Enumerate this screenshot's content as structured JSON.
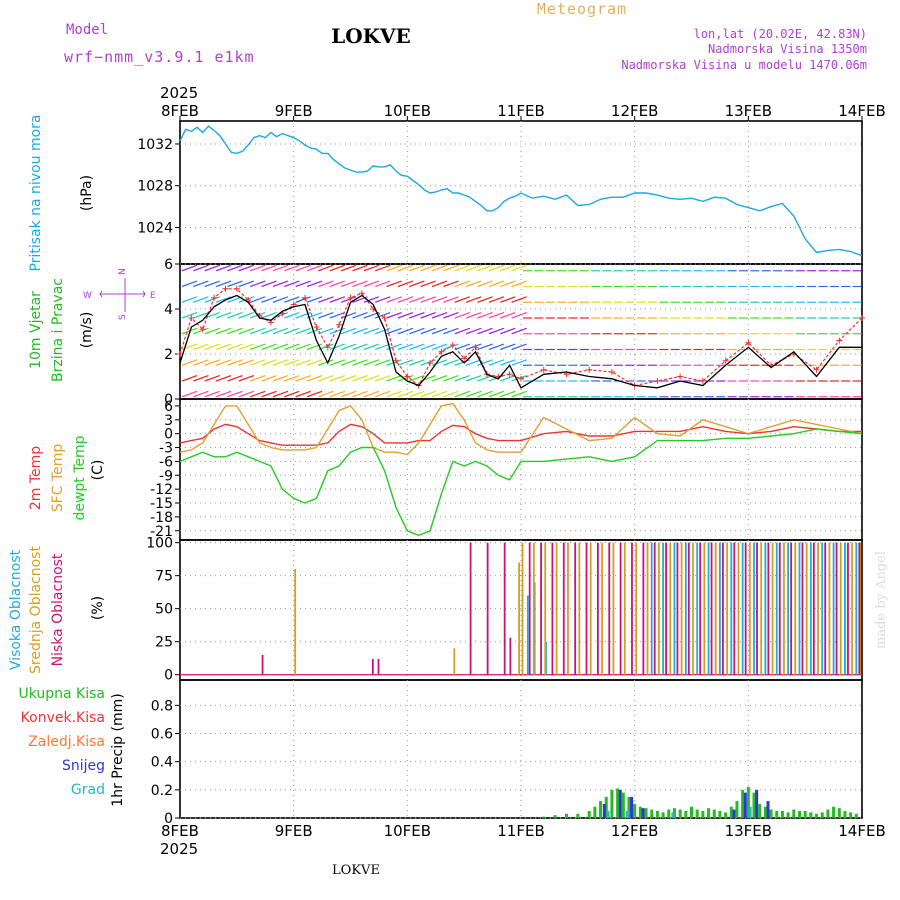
{
  "header": {
    "model_label": "Model",
    "model_name": "wrf−nmm_v3.9.1 e1km",
    "location": "LOKVE",
    "meteogram": "Meteogram",
    "lonlat": "lon,lat (20.02E, 42.83N)",
    "altitude": "Nadmorska Visina 1350m",
    "model_altitude": "Nadmorska Visina u modelu 1470.06m",
    "year_top": "2025",
    "year_bottom": "2025",
    "footer_location": "LOKVE",
    "credit": "made by Angel"
  },
  "colors": {
    "pressure": "#1ba8e0",
    "wind_label": "#22bb22",
    "temp2m": "#ee3333",
    "sfc": "#e0a030",
    "dewpt": "#22cc22",
    "high_cloud": "#22aadd",
    "mid_cloud": "#d4a020",
    "low_cloud": "#cc1177",
    "total_precip": "#22bb22",
    "conv_precip": "#ee3333",
    "freezing": "#ff7733",
    "snow": "#3333dd",
    "hail": "#22bbbb",
    "meteogram_title": "#e0b060",
    "header_purple": "#b040d0"
  },
  "chart_data": [
    {
      "type": "line",
      "panel": "pressure",
      "ylabel": [
        "Pritisak na nivou mora",
        "(hPa)"
      ],
      "xticks": [
        "8FEB",
        "9FEB",
        "10FEB",
        "11FEB",
        "12FEB",
        "13FEB",
        "14FEB"
      ],
      "yticks": [
        1024,
        1028,
        1032
      ],
      "ylim": [
        1020.5,
        1034.2
      ],
      "grid": true,
      "series": [
        {
          "name": "Pritisak na nivou mora",
          "x": [
            0,
            0.05,
            0.1,
            0.15,
            0.2,
            0.25,
            0.3,
            0.35,
            0.4,
            0.45,
            0.5,
            0.55,
            0.6,
            0.65,
            0.7,
            0.75,
            0.8,
            0.85,
            0.9,
            0.95,
            1.0,
            1.05,
            1.1,
            1.15,
            1.2,
            1.25,
            1.3,
            1.35,
            1.4,
            1.45,
            1.5,
            1.55,
            1.6,
            1.65,
            1.7,
            1.75,
            1.8,
            1.85,
            1.9,
            1.95,
            2.0,
            2.05,
            2.1,
            2.15,
            2.2,
            2.25,
            2.3,
            2.35,
            2.4,
            2.45,
            2.5,
            2.55,
            2.6,
            2.65,
            2.7,
            2.75,
            2.8,
            2.85,
            2.9,
            2.95,
            3.0,
            3.1,
            3.2,
            3.3,
            3.4,
            3.5,
            3.6,
            3.7,
            3.8,
            3.9,
            4.0,
            4.1,
            4.2,
            4.3,
            4.4,
            4.5,
            4.6,
            4.7,
            4.8,
            4.9,
            5.0,
            5.1,
            5.2,
            5.3,
            5.4,
            5.5,
            5.6,
            5.7,
            5.8,
            5.9,
            6.0
          ],
          "values": [
            1032.3,
            1033.4,
            1033.2,
            1033.6,
            1033.1,
            1033.7,
            1033.3,
            1032.8,
            1032.0,
            1031.2,
            1031.1,
            1031.3,
            1031.9,
            1032.6,
            1032.8,
            1032.6,
            1033.1,
            1032.7,
            1033.0,
            1032.8,
            1032.6,
            1032.3,
            1031.9,
            1031.6,
            1031.5,
            1031.1,
            1031.1,
            1030.5,
            1030.1,
            1029.7,
            1029.5,
            1029.3,
            1029.3,
            1029.4,
            1029.9,
            1029.8,
            1029.8,
            1030.0,
            1029.4,
            1029.0,
            1028.9,
            1028.5,
            1028.1,
            1027.6,
            1027.3,
            1027.4,
            1027.6,
            1027.7,
            1027.3,
            1027.3,
            1027.1,
            1026.9,
            1026.5,
            1026.1,
            1025.6,
            1025.6,
            1025.9,
            1026.5,
            1026.8,
            1027.0,
            1027.3,
            1026.8,
            1027.0,
            1026.7,
            1027.1,
            1026.1,
            1026.2,
            1026.7,
            1026.9,
            1026.9,
            1027.3,
            1027.3,
            1027.1,
            1026.8,
            1026.7,
            1026.8,
            1026.5,
            1026.9,
            1026.8,
            1026.2,
            1025.9,
            1025.6,
            1026.0,
            1026.3,
            1025.1,
            1022.9,
            1021.6,
            1021.8,
            1021.9,
            1021.7,
            1021.3
          ]
        }
      ]
    },
    {
      "type": "line",
      "panel": "wind",
      "ylabel": [
        "10m Vjetar",
        "Brzina i Pravac",
        "(m/s)"
      ],
      "compass": {
        "n": "N",
        "s": "S",
        "w": "W",
        "e": "E"
      },
      "yticks": [
        0,
        2,
        4,
        6
      ],
      "ylim": [
        0,
        6
      ],
      "grid": true,
      "series": [
        {
          "name": "speed",
          "x": [
            0,
            0.1,
            0.2,
            0.3,
            0.4,
            0.5,
            0.6,
            0.7,
            0.8,
            0.9,
            1.0,
            1.1,
            1.2,
            1.3,
            1.4,
            1.5,
            1.6,
            1.7,
            1.8,
            1.9,
            2.0,
            2.1,
            2.2,
            2.3,
            2.4,
            2.5,
            2.6,
            2.7,
            2.8,
            2.9,
            3.0,
            3.2,
            3.4,
            3.6,
            3.8,
            4.0,
            4.2,
            4.4,
            4.6,
            4.8,
            5.0,
            5.2,
            5.4,
            5.6,
            5.8,
            6.0
          ],
          "values": [
            1.6,
            3.2,
            3.5,
            4.1,
            4.4,
            4.6,
            4.3,
            3.6,
            3.5,
            3.9,
            4.1,
            4.2,
            2.6,
            1.6,
            2.8,
            4.3,
            4.6,
            4.2,
            3.1,
            1.2,
            0.8,
            0.6,
            1.2,
            1.9,
            2.1,
            1.6,
            2.1,
            1.1,
            0.9,
            1.5,
            0.5,
            1.1,
            1.2,
            1.0,
            0.9,
            0.6,
            0.5,
            0.8,
            0.6,
            1.5,
            2.3,
            1.4,
            2.1,
            1.0,
            2.3,
            2.3
          ]
        },
        {
          "name": "gust",
          "x": [
            0,
            0.1,
            0.2,
            0.3,
            0.4,
            0.5,
            0.6,
            0.7,
            0.8,
            0.9,
            1.0,
            1.1,
            1.2,
            1.3,
            1.4,
            1.5,
            1.6,
            1.7,
            1.8,
            1.9,
            2.0,
            2.1,
            2.2,
            2.3,
            2.4,
            2.5,
            2.6,
            2.7,
            2.8,
            2.9,
            3.0,
            3.2,
            3.4,
            3.6,
            3.8,
            4.0,
            4.2,
            4.4,
            4.6,
            4.8,
            5.0,
            5.2,
            5.4,
            5.6,
            5.8,
            6.0
          ],
          "values": [
            2.0,
            3.6,
            3.1,
            4.5,
            4.9,
            4.9,
            4.4,
            3.7,
            3.4,
            3.8,
            4.2,
            4.5,
            3.2,
            2.3,
            3.3,
            4.5,
            4.7,
            4.0,
            3.6,
            1.7,
            1.0,
            0.6,
            1.6,
            2.1,
            2.4,
            1.8,
            2.3,
            1.1,
            1.0,
            1.1,
            0.9,
            1.3,
            1.1,
            1.3,
            1.2,
            0.6,
            0.8,
            1.0,
            0.8,
            1.7,
            2.5,
            1.5,
            2.0,
            1.3,
            2.6,
            3.6
          ]
        }
      ]
    },
    {
      "type": "line",
      "panel": "temperature",
      "ylabel": [
        "2m Temp",
        "SFC Temp",
        "dewpt Temp",
        "(C)"
      ],
      "yticks": [
        6,
        3,
        0,
        -3,
        -6,
        -9,
        -12,
        -15,
        -18,
        -21
      ],
      "ylim": [
        -23,
        7.5
      ],
      "grid": true,
      "x": [
        0,
        0.1,
        0.2,
        0.3,
        0.4,
        0.5,
        0.6,
        0.7,
        0.8,
        0.9,
        1.0,
        1.1,
        1.2,
        1.3,
        1.4,
        1.5,
        1.6,
        1.7,
        1.8,
        1.9,
        2.0,
        2.1,
        2.2,
        2.3,
        2.4,
        2.5,
        2.6,
        2.7,
        2.8,
        2.9,
        3.0,
        3.2,
        3.4,
        3.6,
        3.8,
        4.0,
        4.2,
        4.4,
        4.6,
        4.8,
        5.0,
        5.2,
        5.4,
        5.6,
        5.8,
        6.0
      ],
      "series": [
        {
          "name": "2m Temp",
          "values": [
            -2,
            -1.5,
            -1,
            1,
            2,
            1.5,
            0,
            -1.5,
            -2,
            -2.5,
            -2.5,
            -2.5,
            -2.5,
            -2,
            0.5,
            2,
            1.5,
            0,
            -2,
            -2,
            -2,
            -1.5,
            -1.5,
            0.5,
            1.8,
            1.5,
            0,
            -1,
            -1.5,
            -1.5,
            -1.5,
            0,
            0.5,
            -0.5,
            -0.5,
            0.5,
            0.5,
            0.5,
            1.5,
            0.5,
            0,
            0.5,
            1.5,
            1,
            0.5,
            0.5
          ]
        },
        {
          "name": "SFC Temp",
          "values": [
            -4,
            -3.5,
            -2,
            2,
            6,
            6,
            2,
            -2,
            -3,
            -3.5,
            -3.5,
            -3.5,
            -3,
            1,
            5,
            6,
            3,
            -3,
            -4,
            -4,
            -4.5,
            -2,
            2,
            6,
            6.5,
            3,
            -2,
            -3.5,
            -4,
            -4,
            -4,
            3.5,
            1,
            -1.5,
            -1,
            3.5,
            0,
            -0.5,
            3,
            1.5,
            0,
            1.5,
            3,
            2,
            1,
            0
          ]
        },
        {
          "name": "dewpt Temp",
          "values": [
            -6,
            -5,
            -4,
            -5,
            -5,
            -4,
            -5,
            -6,
            -7,
            -12,
            -14,
            -15,
            -14,
            -8,
            -7,
            -4,
            -3,
            -3,
            -8,
            -16,
            -21,
            -22,
            -21,
            -13,
            -6,
            -7,
            -6,
            -7,
            -9,
            -10,
            -6,
            -6,
            -5.5,
            -5,
            -6,
            -5,
            -1.5,
            -1.5,
            -1.5,
            -1,
            -1,
            -0.5,
            0,
            1,
            0.5,
            0
          ]
        }
      ]
    },
    {
      "type": "bar",
      "panel": "clouds",
      "ylabel": [
        "Visoka Oblacnost",
        "Srednja Oblacnost",
        "Niska Oblacnost",
        "(%)"
      ],
      "yticks": [
        0,
        25,
        50,
        75,
        100
      ],
      "ylim": [
        -4,
        102
      ],
      "grid": true,
      "series": [
        {
          "name": "Visoka Oblacnost",
          "x": [
            3.06,
            3.12,
            3.22,
            4.15,
            4.25,
            4.35,
            4.45,
            4.55,
            4.65,
            4.75,
            4.85,
            4.95,
            5.05,
            5.15,
            5.25,
            5.35,
            5.45,
            5.55,
            5.65,
            5.75,
            5.85,
            5.95
          ],
          "values": [
            60,
            70,
            25,
            100,
            100,
            100,
            100,
            100,
            100,
            100,
            100,
            100,
            100,
            100,
            100,
            100,
            100,
            100,
            100,
            100,
            100,
            100
          ]
        },
        {
          "name": "Srednja Oblacnost",
          "x": [
            1.0,
            2.4,
            2.97,
            3.0,
            3.1,
            3.2,
            3.3,
            3.4,
            3.5,
            3.6,
            3.7,
            3.8,
            3.9,
            4.0,
            4.1,
            4.2,
            4.3,
            4.4,
            4.5,
            4.6,
            4.7,
            4.8,
            4.9,
            5.0,
            5.1,
            5.2,
            5.3,
            5.4,
            5.5,
            5.6,
            5.7,
            5.8,
            5.9,
            5.97
          ],
          "values": [
            80,
            20,
            85,
            100,
            100,
            100,
            100,
            100,
            100,
            100,
            100,
            100,
            100,
            100,
            100,
            100,
            100,
            100,
            100,
            100,
            100,
            100,
            100,
            100,
            100,
            100,
            100,
            100,
            100,
            100,
            100,
            100,
            100,
            100
          ]
        },
        {
          "name": "Niska Oblacnost",
          "x": [
            0.7,
            1.67,
            1.72,
            2.53,
            2.68,
            2.83,
            2.88,
            3.05,
            3.15,
            3.25,
            3.35,
            3.45,
            3.55,
            3.65,
            3.75,
            3.85,
            3.95,
            4.05,
            4.15,
            4.25,
            4.35,
            4.45,
            4.55,
            4.65,
            4.75,
            4.85,
            4.95,
            5.05,
            5.15,
            5.25,
            5.35,
            5.45,
            5.55,
            5.65,
            5.75,
            5.85,
            5.95
          ],
          "values": [
            15,
            12,
            12,
            100,
            100,
            100,
            28,
            100,
            100,
            100,
            100,
            100,
            100,
            100,
            100,
            100,
            100,
            100,
            100,
            100,
            100,
            100,
            100,
            100,
            100,
            100,
            100,
            100,
            100,
            100,
            100,
            100,
            100,
            100,
            100,
            100,
            100
          ]
        }
      ]
    },
    {
      "type": "bar",
      "panel": "precip",
      "ylabel": [
        "1hr Precip (mm)"
      ],
      "legend": [
        "Ukupna Kisa",
        "Konvek.Kisa",
        "Zaledj.Kisa",
        "Snijeg",
        "Grad"
      ],
      "yticks": [
        0,
        0.2,
        0.4,
        0.6,
        0.8
      ],
      "ylim": [
        0,
        0.98
      ],
      "grid": true,
      "xticks": [
        "8FEB",
        "9FEB",
        "10FEB",
        "11FEB",
        "12FEB",
        "13FEB",
        "14FEB"
      ],
      "series": [
        {
          "name": "Ukupna Kisa",
          "x": [
            3.2,
            3.3,
            3.4,
            3.5,
            3.6,
            3.65,
            3.7,
            3.75,
            3.8,
            3.85,
            3.9,
            3.95,
            4.0,
            4.05,
            4.1,
            4.15,
            4.2,
            4.25,
            4.3,
            4.35,
            4.4,
            4.45,
            4.5,
            4.55,
            4.6,
            4.65,
            4.7,
            4.75,
            4.8,
            4.85,
            4.9,
            4.95,
            5.0,
            5.05,
            5.1,
            5.15,
            5.2,
            5.25,
            5.3,
            5.35,
            5.4,
            5.45,
            5.5,
            5.55,
            5.6,
            5.65,
            5.7,
            5.75,
            5.8,
            5.85,
            5.9,
            5.95
          ],
          "values": [
            0.01,
            0.02,
            0.03,
            0.03,
            0.05,
            0.08,
            0.12,
            0.15,
            0.2,
            0.21,
            0.18,
            0.15,
            0.1,
            0.08,
            0.07,
            0.06,
            0.05,
            0.04,
            0.06,
            0.07,
            0.06,
            0.05,
            0.08,
            0.06,
            0.05,
            0.07,
            0.06,
            0.05,
            0.04,
            0.08,
            0.12,
            0.2,
            0.22,
            0.18,
            0.1,
            0.08,
            0.06,
            0.05,
            0.05,
            0.04,
            0.06,
            0.05,
            0.05,
            0.04,
            0.03,
            0.04,
            0.06,
            0.08,
            0.07,
            0.05,
            0.04,
            0.03
          ]
        },
        {
          "name": "Snijeg",
          "x": [
            3.72,
            3.86,
            3.96,
            4.06,
            4.86,
            4.96,
            5.06,
            5.16
          ],
          "values": [
            0.1,
            0.2,
            0.15,
            0.07,
            0.06,
            0.18,
            0.2,
            0.12
          ]
        },
        {
          "name": "Grad",
          "x": [
            3.74,
            3.91,
            4.31,
            4.99
          ],
          "values": [
            0.05,
            0.05,
            0.04,
            0.08
          ]
        }
      ]
    }
  ]
}
